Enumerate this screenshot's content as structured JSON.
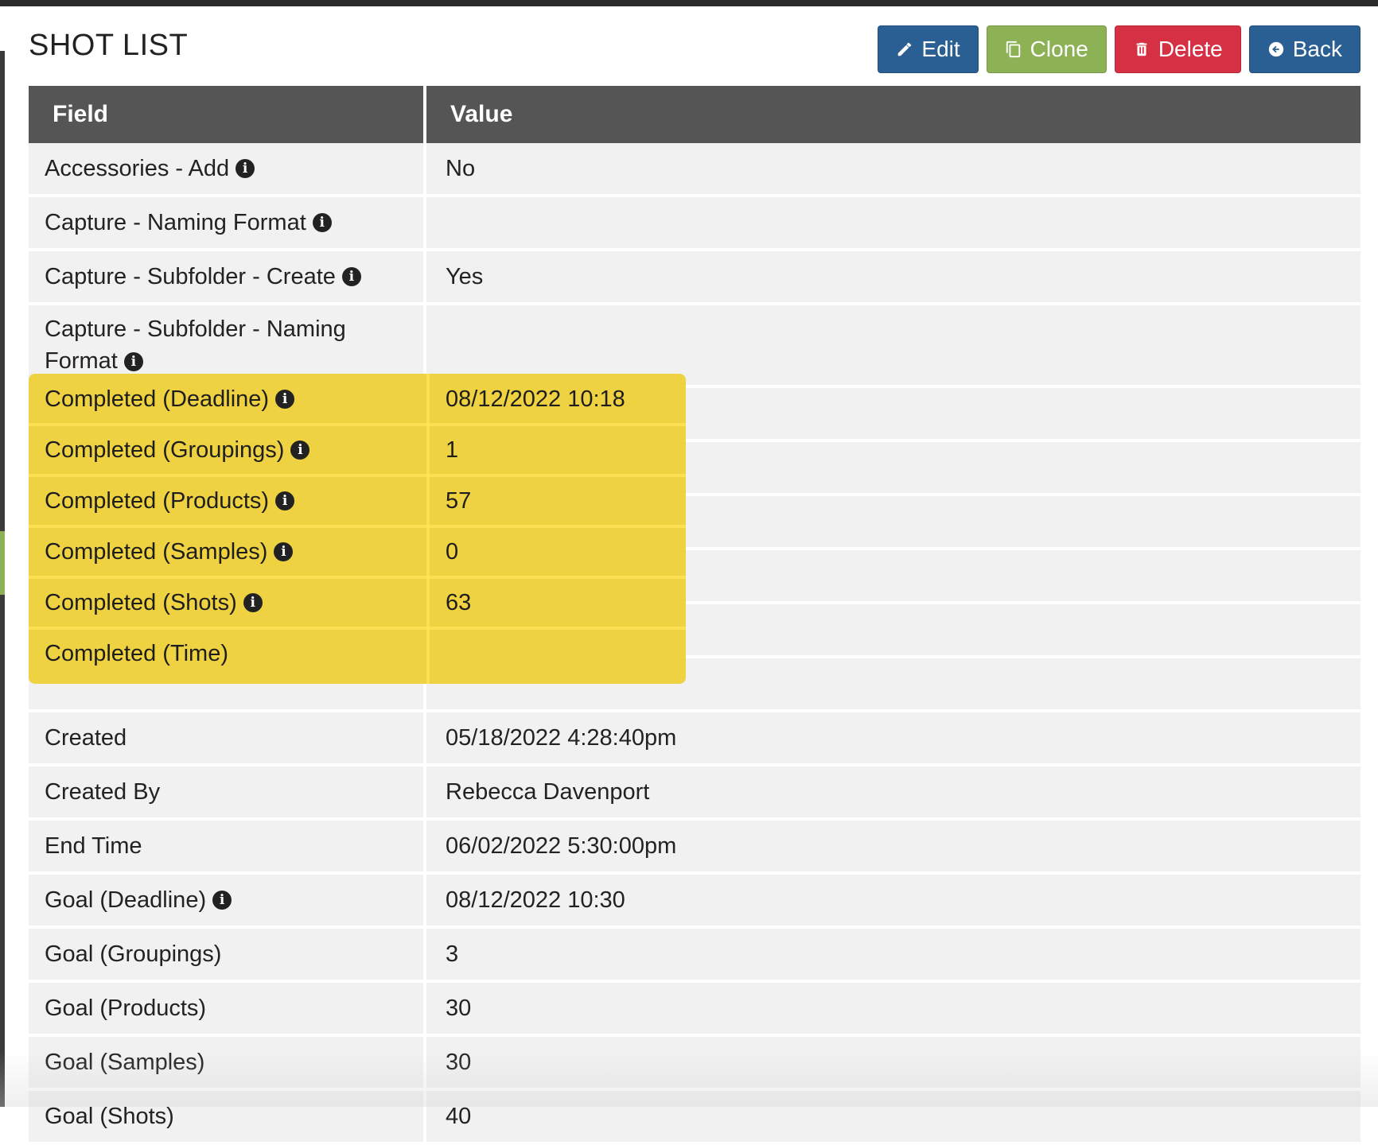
{
  "page": {
    "title": "SHOT LIST"
  },
  "toolbar": {
    "edit_label": "Edit",
    "clone_label": "Clone",
    "delete_label": "Delete",
    "back_label": "Back"
  },
  "table": {
    "headers": {
      "field": "Field",
      "value": "Value"
    },
    "rows": [
      {
        "field": "Accessories - Add",
        "value": "No"
      },
      {
        "field": "Capture - Naming Format",
        "value": ""
      },
      {
        "field": "Capture - Subfolder - Create",
        "value": "Yes"
      },
      {
        "field": "Capture - Subfolder - Naming Format",
        "value": ""
      },
      {
        "field": "Completed (Deadline)",
        "value": "08/12/2022 10:18"
      },
      {
        "field": "Completed (Groupings)",
        "value": "1"
      },
      {
        "field": "Completed (Products)",
        "value": "57"
      },
      {
        "field": "Completed (Samples)",
        "value": "0"
      },
      {
        "field": "Completed (Shots)",
        "value": "63"
      },
      {
        "field": "Completed (Time)",
        "value": ""
      },
      {
        "field": "Created",
        "value": "05/18/2022 4:28:40pm"
      },
      {
        "field": "Created By",
        "value": "Rebecca Davenport"
      },
      {
        "field": "End Time",
        "value": "06/02/2022 5:30:00pm"
      },
      {
        "field": "Goal (Deadline)",
        "value": "08/12/2022 10:30"
      },
      {
        "field": "Goal (Groupings)",
        "value": "3"
      },
      {
        "field": "Goal (Products)",
        "value": "30"
      },
      {
        "field": "Goal (Samples)",
        "value": "30"
      },
      {
        "field": "Goal (Shots)",
        "value": "40"
      }
    ]
  },
  "icons": {
    "info": "info-circle-icon",
    "edit": "pencil-icon",
    "clone": "copy-icon",
    "delete": "trash-icon",
    "back": "arrow-left-circle-icon"
  },
  "colors": {
    "edit": "#2a5f94",
    "clone": "#8db255",
    "delete": "#d63045",
    "back": "#2a5f94",
    "header": "#555555",
    "row": "#f1f1f1",
    "highlight": "#eecd28"
  }
}
